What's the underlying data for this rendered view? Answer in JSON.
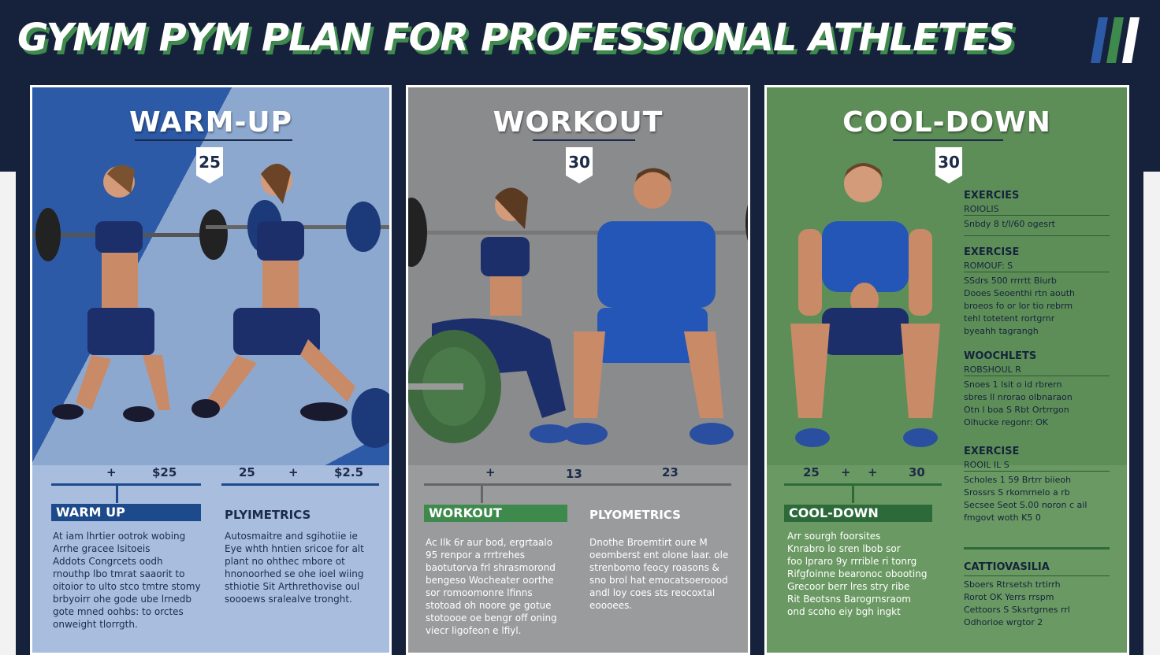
{
  "header": {
    "title": "GYMM PYM PLAN FOR PROFESSIONAL ATHLETES"
  },
  "panels": {
    "warmup": {
      "title": "WARM-UP",
      "badge": "25",
      "nums": [
        "+",
        "$25",
        "25",
        "+",
        "$2.5"
      ],
      "label": "WARM UP",
      "subheading": "PLYIMETRICS",
      "text_left": "At iam lhrtier ootrok wobing\nArrhe gracee lsitoeis\nAddots Congrcets oodh\nrnouthp lbo tmrat saaorit to\noitoior to ulto stco tmtre stomy\nbrbyoirr ohe gode ube lrnedb\ngote mned oohbs: to orctes\nonweight tlorrgth.",
      "text_right": "Autosmaitre and sgihotiie ie\nEye whth hntien sricoe for alt\nplant no ohthec mbore ot\nhnonoorhed se ohe ioel wiing\nsthiotie Sit Arthrethovise oul\nsoooews sralealve tronght."
    },
    "workout": {
      "title": "WORKOUT",
      "badge": "30",
      "nums": [
        "+",
        "13",
        "23"
      ],
      "label": "WORKOUT",
      "subheading": "PLYOMETRICS",
      "text_left": "Ac Ilk 6r aur bod, ergrtaalo\n95 renpor a rrrtrehes\nbaotutorva frl shrasmorond\nbengeso Wocheater oorthe\nsor  romoomonre  lfinns\nstotoad oh noore ge gotue\nstotoooe oe bengr off oning\nviecr ligofeon e lfiyl.",
      "text_right": "Dnothe Broemtirt oure  M\noeomberst ent olone  laar. ole\nstrenbomo feocy roasons &\nsno brol hat emocatsoeroood\nandl loy coes sts reocoxtal\neoooees."
    },
    "cooldown": {
      "title": "COOL-DOWN",
      "badge": "30",
      "nums": [
        "25",
        "+",
        "+",
        "30"
      ],
      "label": "COOL-DOWN",
      "text_left": "Arr sourgh foorsites\nKnrabro lo sren lbob sor\nfoo lpraro 9y rrrible ri tonrg\nRifgfoinne bearonoc obooting\nGrecoor berr lres stry ribe\nRit Beotsns Barogrnsraom\nond scoho eiy bgh ingkt",
      "side": [
        {
          "title": "EXERCIES",
          "sub": "ROIOLIS",
          "text": "Snbdy  8 t/I/60 ogesrt"
        },
        {
          "title": "EXERCISE",
          "sub": "ROMOUF: S",
          "text": "SSdrs  500 rrrrtt Biurb\nDooes  Seoenthi rtn aouth\nbroeos fo or lor tio rebrm\ntehl  totetent rortgrnr\nbyeahh tagrangh"
        },
        {
          "title": "WOOCHLETS",
          "sub": "ROBSHOUL R",
          "text": "Snoes  1 lsit o id rbrern\nsbres  Il nrorao olbnaraon\nOtn l boa  S Rbt Ortrrgon\nOihucke  regonr: OK"
        },
        {
          "title": "EXERCISE",
          "sub": "ROOIL IL S",
          "text": "Scholes  1 59 Brtrr biieoh\nSrossrs S rkomrnelo a rb\nSecsee Seot S.00 noron c ail\nfmgovt woth  K5 0"
        },
        {
          "title": "CATTIOVASILIA",
          "sub": "",
          "text": "Sboers   Rtrsetsh trtirrh\nRorot  OK Yerrs rrspm\nCettoors  S  Sksrtgrnes rrl\nOdhorioe wrgtor 2"
        }
      ]
    }
  },
  "colors": {
    "navy": "#16223b",
    "blue": "#2c5aa6",
    "grey": "#8a8b8d",
    "green": "#5e8e58",
    "accent_green": "#3e8a4c"
  }
}
